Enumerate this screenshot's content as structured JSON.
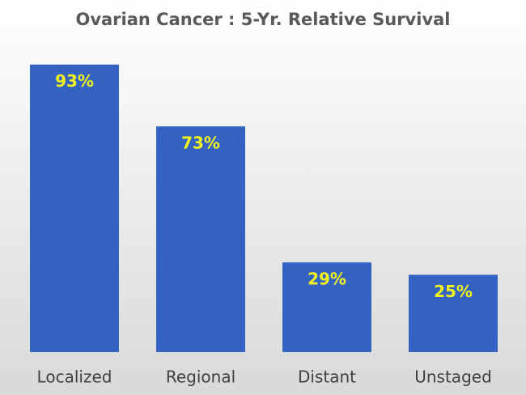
{
  "chart_data": {
    "type": "bar",
    "title": "Ovarian Cancer : 5-Yr. Relative Survival",
    "categories": [
      "Localized",
      "Regional",
      "Distant",
      "Unstaged"
    ],
    "values": [
      93,
      73,
      29,
      25
    ],
    "value_labels": [
      "93%",
      "73%",
      "29%",
      "25%"
    ],
    "color": "#3462c2",
    "label_color": "#f2f21e"
  }
}
